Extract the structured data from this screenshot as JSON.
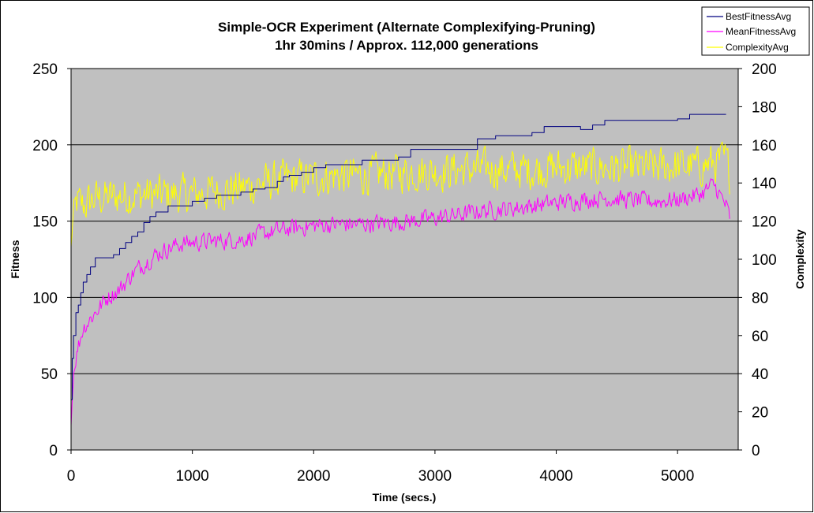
{
  "chart_data": {
    "type": "line",
    "title": "Simple-OCR Experiment (Alternate Complexifying-Pruning)",
    "subtitle": "1hr 30mins / Approx. 112,000 generations",
    "xlabel": "Time (secs.)",
    "ylabel": "Fitness",
    "y2label": "Complexity",
    "xlim": [
      0,
      5500
    ],
    "ylim": [
      0,
      250
    ],
    "y2lim": [
      0,
      200
    ],
    "xticks": [
      0,
      1000,
      2000,
      3000,
      4000,
      5000
    ],
    "yticks": [
      0,
      50,
      100,
      150,
      200,
      250
    ],
    "y2ticks": [
      0,
      20,
      40,
      60,
      80,
      100,
      120,
      140,
      160,
      180,
      200
    ],
    "grid": "horizontal",
    "legend_position": "top-right",
    "background_color": "#c0c0c0",
    "series": [
      {
        "name": "BestFitnessAvg",
        "axis": "left",
        "color": "#000080",
        "step": true,
        "x": [
          0,
          10,
          20,
          40,
          60,
          80,
          100,
          130,
          160,
          200,
          250,
          300,
          350,
          400,
          450,
          500,
          550,
          600,
          650,
          700,
          800,
          1000,
          1100,
          1200,
          1400,
          1500,
          1600,
          1700,
          1750,
          1800,
          1900,
          2000,
          2100,
          2300,
          2400,
          2700,
          2800,
          3000,
          3200,
          3350,
          3500,
          3600,
          3800,
          3900,
          4000,
          4200,
          4300,
          4400,
          4800,
          5000,
          5100,
          5400
        ],
        "values": [
          33,
          60,
          75,
          90,
          95,
          103,
          110,
          115,
          120,
          126,
          126,
          126,
          128,
          132,
          136,
          140,
          143,
          149,
          153,
          156,
          160,
          163,
          165,
          167,
          169,
          171,
          172,
          176,
          179,
          180,
          182,
          185,
          187,
          187,
          190,
          192,
          197,
          197,
          197,
          204,
          206,
          206,
          208,
          212,
          212,
          210,
          213,
          216,
          216,
          217,
          220,
          220
        ]
      },
      {
        "name": "MeanFitnessAvg",
        "axis": "left",
        "color": "#ff00ff",
        "step": false,
        "x": [
          0,
          20,
          50,
          100,
          200,
          300,
          400,
          500,
          600,
          700,
          800,
          900,
          1000,
          1200,
          1400,
          1600,
          1800,
          2000,
          2200,
          2400,
          2600,
          2800,
          3000,
          3200,
          3400,
          3600,
          3800,
          4000,
          4200,
          4400,
          4600,
          4800,
          5000,
          5200,
          5300,
          5400,
          5430
        ],
        "values": [
          16,
          50,
          65,
          80,
          90,
          100,
          105,
          115,
          122,
          128,
          132,
          135,
          136,
          137,
          138,
          142,
          145,
          147,
          148,
          148,
          149,
          150,
          152,
          154,
          157,
          158,
          160,
          162,
          164,
          165,
          164,
          163,
          164,
          168,
          174,
          160,
          152
        ],
        "noise_amplitude": 8
      },
      {
        "name": "ComplexityAvg",
        "axis": "right",
        "color": "#ffff00",
        "step": false,
        "x": [
          0,
          20,
          50,
          100,
          200,
          400,
          600,
          800,
          1000,
          1200,
          1400,
          1600,
          1800,
          2000,
          2200,
          2400,
          2600,
          2800,
          3000,
          3200,
          3400,
          3600,
          3800,
          4000,
          4200,
          4400,
          4600,
          4800,
          5000,
          5200,
          5400,
          5430
        ],
        "values": [
          106,
          125,
          130,
          128,
          132,
          133,
          134,
          134,
          134,
          136,
          137,
          140,
          142,
          143,
          144,
          144,
          145,
          146,
          146,
          147,
          147,
          147,
          147,
          148,
          148,
          148,
          148,
          148,
          149,
          149,
          152,
          145
        ],
        "noise_amplitude": 14
      }
    ]
  }
}
